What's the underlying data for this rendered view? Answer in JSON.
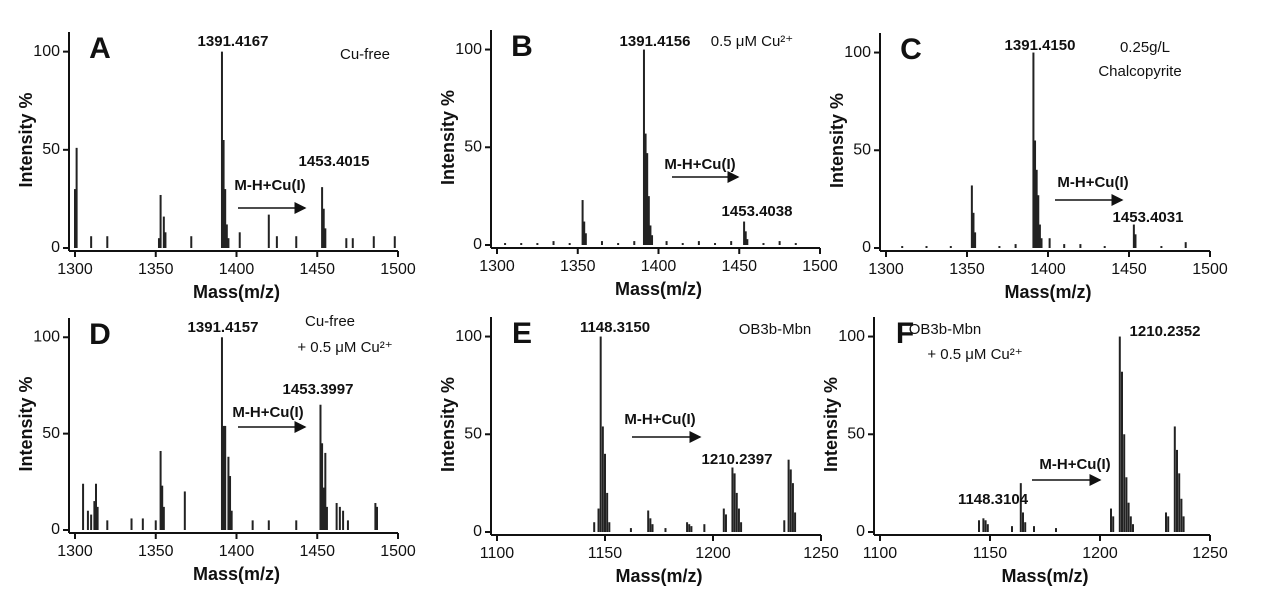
{
  "chart_data": [
    {
      "type": "bar",
      "label": "A",
      "xlabel": "Mass(m/z)",
      "ylabel": "Intensity %",
      "color": "#222222",
      "xlim": [
        1300,
        1500
      ],
      "xticks": [
        1300,
        1350,
        1400,
        1450,
        1500
      ],
      "ylim": [
        0,
        110
      ],
      "yticks": [
        0,
        50,
        100
      ],
      "x": [
        1300,
        1301,
        1310,
        1320,
        1352,
        1353,
        1355,
        1356,
        1372,
        1391,
        1392,
        1393,
        1394,
        1395,
        1402,
        1420,
        1425,
        1437,
        1453,
        1454,
        1455,
        1468,
        1472,
        1485,
        1498
      ],
      "values": [
        30,
        51,
        6,
        6,
        5,
        27,
        16,
        8,
        6,
        100,
        55,
        30,
        12,
        5,
        8,
        17,
        6,
        6,
        31,
        20,
        10,
        5,
        5,
        6,
        6
      ],
      "annotations": [
        "1391.4167",
        "1453.4015",
        "Cu-free",
        "M-H+Cu(I)"
      ]
    },
    {
      "type": "bar",
      "label": "B",
      "xlabel": "Mass(m/z)",
      "ylabel": "Intensity %",
      "color": "#222222",
      "xlim": [
        1300,
        1500
      ],
      "xticks": [
        1300,
        1350,
        1400,
        1450,
        1500
      ],
      "ylim": [
        0,
        110
      ],
      "yticks": [
        0,
        50,
        100
      ],
      "x": [
        1305,
        1315,
        1325,
        1335,
        1345,
        1353,
        1354,
        1355,
        1365,
        1375,
        1385,
        1391,
        1392,
        1393,
        1394,
        1395,
        1396,
        1405,
        1415,
        1425,
        1435,
        1445,
        1453,
        1454,
        1455,
        1465,
        1475,
        1485
      ],
      "values": [
        1,
        1,
        1,
        2,
        1,
        23,
        12,
        6,
        2,
        1,
        2,
        100,
        57,
        47,
        25,
        10,
        5,
        2,
        1,
        2,
        1,
        2,
        12,
        7,
        3,
        1,
        2,
        1
      ],
      "annotations": [
        "1391.4156",
        "0.5 μM Cu²⁺",
        "M-H+Cu(I)",
        "1453.4038"
      ]
    },
    {
      "type": "bar",
      "label": "C",
      "xlabel": "Mass(m/z)",
      "ylabel": "Intensity %",
      "color": "#222222",
      "xlim": [
        1300,
        1500
      ],
      "xticks": [
        1300,
        1350,
        1400,
        1450,
        1500
      ],
      "ylim": [
        0,
        110
      ],
      "yticks": [
        0,
        50,
        100
      ],
      "x": [
        1310,
        1325,
        1340,
        1353,
        1354,
        1355,
        1370,
        1380,
        1391,
        1392,
        1393,
        1394,
        1395,
        1396,
        1401,
        1410,
        1420,
        1435,
        1453,
        1454,
        1470,
        1485
      ],
      "values": [
        1,
        1,
        1,
        32,
        18,
        8,
        1,
        2,
        100,
        55,
        40,
        27,
        12,
        5,
        5,
        2,
        2,
        1,
        12,
        7,
        1,
        3
      ],
      "annotations": [
        "1391.4150",
        "0.25g/L",
        "Chalcopyrite",
        "M-H+Cu(I)",
        "1453.4031"
      ]
    },
    {
      "type": "bar",
      "label": "D",
      "xlabel": "Mass(m/z)",
      "ylabel": "Intensity %",
      "color": "#222222",
      "xlim": [
        1300,
        1500
      ],
      "xticks": [
        1300,
        1350,
        1400,
        1450,
        1500
      ],
      "ylim": [
        0,
        110
      ],
      "yticks": [
        0,
        50,
        100
      ],
      "x": [
        1305,
        1308,
        1310,
        1312,
        1313,
        1314,
        1320,
        1335,
        1342,
        1350,
        1353,
        1354,
        1355,
        1368,
        1391,
        1392,
        1393,
        1395,
        1396,
        1397,
        1410,
        1420,
        1437,
        1452,
        1453,
        1454,
        1455,
        1456,
        1462,
        1464,
        1466,
        1469,
        1486,
        1487
      ],
      "values": [
        24,
        10,
        8,
        15,
        24,
        12,
        5,
        6,
        6,
        5,
        41,
        23,
        12,
        20,
        100,
        54,
        54,
        38,
        28,
        10,
        5,
        5,
        5,
        65,
        45,
        22,
        40,
        12,
        14,
        12,
        10,
        5,
        14,
        12
      ],
      "annotations": [
        "1391.4157",
        "Cu-free",
        "+ 0.5 μM Cu²⁺",
        "1453.3997",
        "M-H+Cu(I)"
      ]
    },
    {
      "type": "bar",
      "label": "E",
      "xlabel": "Mass(m/z)",
      "ylabel": "Intensity %",
      "color": "#222222",
      "xlim": [
        1100,
        1250
      ],
      "xticks": [
        1100,
        1150,
        1200,
        1250
      ],
      "ylim": [
        0,
        110
      ],
      "yticks": [
        0,
        50,
        100
      ],
      "x": [
        1145,
        1147,
        1148,
        1149,
        1150,
        1151,
        1152,
        1162,
        1170,
        1171,
        1172,
        1178,
        1188,
        1189,
        1190,
        1196,
        1205,
        1206,
        1209,
        1210,
        1211,
        1212,
        1213,
        1233,
        1235,
        1236,
        1237,
        1238
      ],
      "values": [
        5,
        12,
        100,
        54,
        40,
        20,
        5,
        2,
        11,
        7,
        4,
        2,
        5,
        4,
        3,
        4,
        12,
        9,
        33,
        30,
        20,
        12,
        5,
        6,
        37,
        32,
        25,
        10
      ],
      "annotations": [
        "1148.3150",
        "OB3b-Mbn",
        "M-H+Cu(I)",
        "1210.2397"
      ]
    },
    {
      "type": "bar",
      "label": "F",
      "xlabel": "Mass(m/z)",
      "ylabel": "Intensity %",
      "color": "#222222",
      "xlim": [
        1100,
        1250
      ],
      "xticks": [
        1100,
        1150,
        1200,
        1250
      ],
      "ylim": [
        0,
        110
      ],
      "yticks": [
        0,
        50,
        100
      ],
      "x": [
        1145,
        1147,
        1148,
        1149,
        1160,
        1164,
        1165,
        1166,
        1170,
        1180,
        1205,
        1206,
        1209,
        1210,
        1211,
        1212,
        1213,
        1214,
        1215,
        1230,
        1231,
        1234,
        1235,
        1236,
        1237,
        1238
      ],
      "values": [
        6,
        7,
        6,
        4,
        3,
        25,
        10,
        5,
        3,
        2,
        12,
        8,
        100,
        82,
        50,
        28,
        15,
        8,
        4,
        10,
        8,
        54,
        42,
        30,
        17,
        8
      ],
      "annotations": [
        "OB3b-Mbn",
        "+ 0.5 μM Cu²⁺",
        "1210.2352",
        "M-H+Cu(I)",
        "1148.3104"
      ]
    }
  ]
}
